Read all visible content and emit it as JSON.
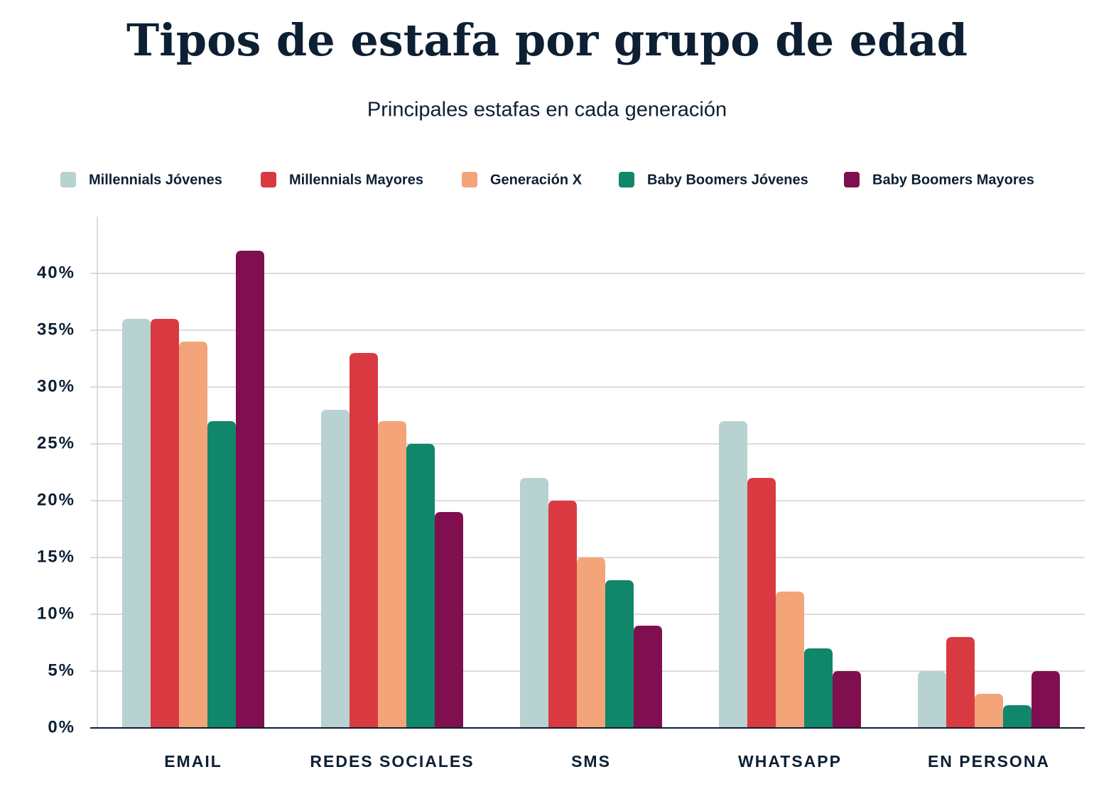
{
  "chart_data": {
    "type": "bar",
    "title": "Tipos de estafa por grupo de edad",
    "subtitle": "Principales estafas en cada generación",
    "categories": [
      "EMAIL",
      "REDES SOCIALES",
      "SMS",
      "WHATSAPP",
      "EN PERSONA"
    ],
    "series": [
      {
        "name": "Millennials Jóvenes",
        "color": "#b7d2d1",
        "values": [
          36,
          28,
          22,
          27,
          5
        ]
      },
      {
        "name": "Millennials Mayores",
        "color": "#d93a41",
        "values": [
          36,
          33,
          20,
          22,
          8
        ]
      },
      {
        "name": "Generación X",
        "color": "#f3a478",
        "values": [
          34,
          27,
          15,
          12,
          3
        ]
      },
      {
        "name": "Baby Boomers Jóvenes",
        "color": "#10866b",
        "values": [
          27,
          25,
          13,
          7,
          2
        ]
      },
      {
        "name": "Baby Boomers Mayores",
        "color": "#7f0f4f",
        "values": [
          42,
          19,
          9,
          5,
          5
        ]
      }
    ],
    "ylim": [
      0,
      45
    ],
    "yticks": [
      {
        "value": 0,
        "label": "0%"
      },
      {
        "value": 5,
        "label": "5%"
      },
      {
        "value": 10,
        "label": "10%"
      },
      {
        "value": 15,
        "label": "15%"
      },
      {
        "value": 20,
        "label": "20%"
      },
      {
        "value": 25,
        "label": "25%"
      },
      {
        "value": 30,
        "label": "30%"
      },
      {
        "value": 35,
        "label": "35%"
      },
      {
        "value": 40,
        "label": "40%"
      }
    ],
    "grid": true,
    "legend": "top"
  }
}
